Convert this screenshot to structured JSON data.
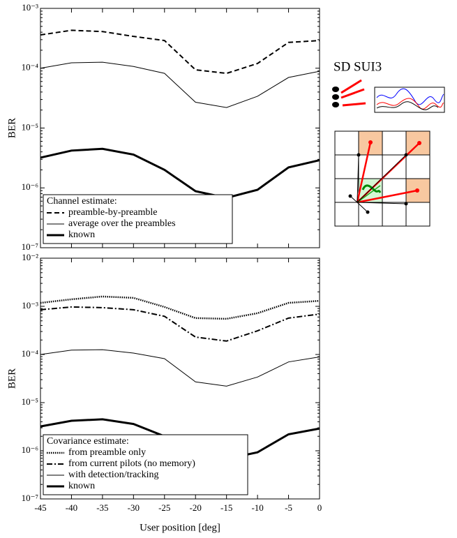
{
  "chart_data": [
    {
      "type": "line",
      "ylabel": "BER",
      "yscale": "log",
      "x": [
        -45,
        -40,
        -35,
        -30,
        -25,
        -20,
        -15,
        -10,
        -5,
        0
      ],
      "xlim": [
        -45,
        0
      ],
      "xticks": [
        -45,
        -40,
        -35,
        -30,
        -25,
        -20,
        -15,
        -10,
        -5,
        0
      ],
      "show_xticklabels": false,
      "ylim": [
        1e-07,
        0.001
      ],
      "yticks": [
        {
          "value": 1e-07,
          "label": "10⁻⁷"
        },
        {
          "value": 1e-06,
          "label": "10⁻⁶"
        },
        {
          "value": 1e-05,
          "label": "10⁻⁵"
        },
        {
          "value": 0.0001,
          "label": "10⁻⁴"
        },
        {
          "value": 0.001,
          "label": "10⁻³"
        }
      ],
      "legend": {
        "title": "Channel estimate:",
        "position": "lower left"
      },
      "series": [
        {
          "name": "preamble-by-preamble",
          "color": "#000000",
          "style": "dashed",
          "width": 2,
          "values": [
            0.00036,
            0.00043,
            0.00041,
            0.00034,
            0.00029,
            9.4e-05,
            8.2e-05,
            0.00012,
            0.00027,
            0.00029
          ]
        },
        {
          "name": "average over the preambles",
          "color": "#000000",
          "style": "solid",
          "width": 1,
          "values": [
            0.0001,
            0.000123,
            0.000126,
            0.000107,
            8.2e-05,
            2.7e-05,
            2.2e-05,
            3.4e-05,
            7e-05,
            8.9e-05
          ]
        },
        {
          "name": "known",
          "color": "#000000",
          "style": "solid",
          "width": 3,
          "values": [
            3.2e-06,
            4.2e-06,
            4.5e-06,
            3.6e-06,
            2e-06,
            8.8e-07,
            6.8e-07,
            9.3e-07,
            2.2e-06,
            2.9e-06
          ]
        }
      ]
    },
    {
      "type": "line",
      "ylabel": "BER",
      "xlabel": "User position [deg]",
      "yscale": "log",
      "x": [
        -45,
        -40,
        -35,
        -30,
        -25,
        -20,
        -15,
        -10,
        -5,
        0
      ],
      "xlim": [
        -45,
        0
      ],
      "xticks": [
        -45,
        -40,
        -35,
        -30,
        -25,
        -20,
        -15,
        -10,
        -5,
        0
      ],
      "show_xticklabels": true,
      "ylim": [
        1e-07,
        0.01
      ],
      "yticks": [
        {
          "value": 1e-07,
          "label": "10⁻⁷"
        },
        {
          "value": 1e-06,
          "label": "10⁻⁶"
        },
        {
          "value": 1e-05,
          "label": "10⁻⁵"
        },
        {
          "value": 0.0001,
          "label": "10⁻⁴"
        },
        {
          "value": 0.001,
          "label": "10⁻³"
        },
        {
          "value": 0.01,
          "label": "10⁻²"
        }
      ],
      "legend": {
        "title": "Covariance estimate:",
        "position": "lower left"
      },
      "series": [
        {
          "name": "from preamble only",
          "color": "#000000",
          "style": "dotted",
          "width": 2.5,
          "values": [
            0.00118,
            0.0014,
            0.0016,
            0.0015,
            0.00097,
            0.00057,
            0.00055,
            0.00072,
            0.00118,
            0.0013
          ]
        },
        {
          "name": "from current pilots (no memory)",
          "color": "#000000",
          "style": "dashdot",
          "width": 2,
          "values": [
            0.00085,
            0.00097,
            0.00094,
            0.00085,
            0.00062,
            0.00023,
            0.00019,
            0.00031,
            0.00057,
            0.00069
          ]
        },
        {
          "name": "with detection/tracking",
          "color": "#000000",
          "style": "solid",
          "width": 1,
          "values": [
            0.0001,
            0.000123,
            0.000126,
            0.000107,
            8.2e-05,
            2.7e-05,
            2.2e-05,
            3.4e-05,
            7e-05,
            8.9e-05
          ]
        },
        {
          "name": "known",
          "color": "#000000",
          "style": "solid",
          "width": 3,
          "values": [
            3.2e-06,
            4.2e-06,
            4.5e-06,
            3.6e-06,
            2e-06,
            8.8e-07,
            6.8e-07,
            9.3e-07,
            2.2e-06,
            2.9e-06
          ]
        }
      ]
    }
  ],
  "diagram": {
    "title": "SD SUI3"
  }
}
